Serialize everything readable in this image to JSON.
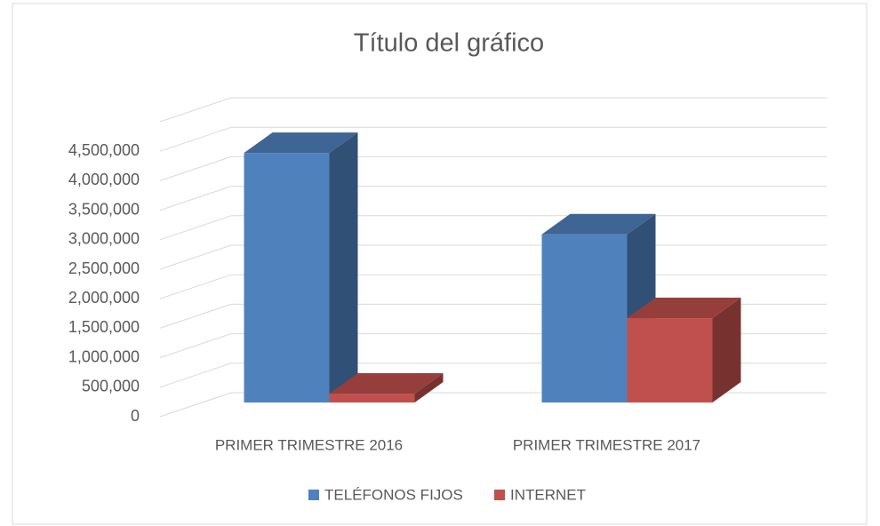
{
  "chart_data": {
    "type": "bar3d",
    "title": "Título del gráfico",
    "categories": [
      "PRIMER TRIMESTRE 2016",
      "PRIMER TRIMESTRE 2017"
    ],
    "series": [
      {
        "name": "TELÉFONOS FIJOS",
        "color": "#4f81bd",
        "values": [
          4230000,
          2850000
        ]
      },
      {
        "name": "INTERNET",
        "color": "#c0504d",
        "values": [
          150000,
          1430000
        ]
      }
    ],
    "ylim": [
      0,
      5000000
    ],
    "yticks": [
      0,
      {
        "value": 500000,
        "label": "500,000"
      },
      {
        "value": 1000000,
        "label": "1,000,000"
      },
      {
        "value": 1500000,
        "label": "1,500,000"
      },
      {
        "value": 2000000,
        "label": "2,000,000"
      },
      {
        "value": 2500000,
        "label": "2,500,000"
      },
      {
        "value": 3000000,
        "label": "3,000,000"
      },
      {
        "value": 3500000,
        "label": "3,500,000"
      },
      {
        "value": 4000000,
        "label": "4,000,000"
      },
      {
        "value": 4500000,
        "label": "4,500,000"
      }
    ],
    "grid": true,
    "legend": "bottom"
  }
}
